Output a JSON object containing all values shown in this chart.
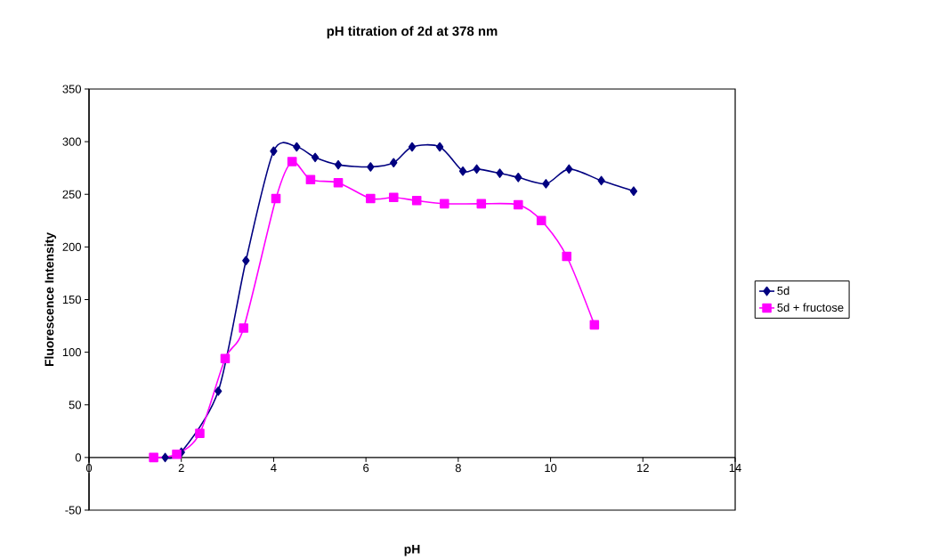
{
  "chart_data": {
    "type": "line",
    "title": "pH titration of 2d at 378 nm",
    "xlabel": "pH",
    "ylabel": "Fluorescence Intensity",
    "xlim": [
      0,
      14
    ],
    "xticks": [
      0,
      2,
      4,
      6,
      8,
      10,
      12,
      14
    ],
    "ylim": [
      -50,
      350
    ],
    "yticks": [
      -50,
      0,
      50,
      100,
      150,
      200,
      250,
      300,
      350
    ],
    "grid": false,
    "legend": "right",
    "series": [
      {
        "name": "5d",
        "color": "#000080",
        "marker": "diamond",
        "x": [
          1.65,
          2.0,
          2.4,
          2.8,
          3.4,
          4.0,
          4.5,
          4.9,
          5.4,
          6.1,
          6.6,
          7.0,
          7.6,
          8.1,
          8.4,
          8.9,
          9.3,
          9.9,
          10.4,
          11.1,
          11.8
        ],
        "values": [
          0,
          5,
          null,
          63,
          187,
          291,
          295,
          285,
          278,
          276,
          280,
          295,
          295,
          272,
          274,
          270,
          266,
          260,
          274,
          263,
          253
        ]
      },
      {
        "name": "5d + fructose",
        "color": "#ff00ff",
        "marker": "square",
        "x": [
          1.4,
          1.9,
          2.4,
          2.95,
          3.35,
          4.05,
          4.4,
          4.8,
          5.4,
          6.1,
          6.6,
          7.1,
          7.7,
          8.5,
          9.3,
          9.8,
          10.35,
          10.95
        ],
        "values": [
          0,
          3,
          23,
          94,
          123,
          246,
          281,
          264,
          261,
          246,
          247,
          244,
          241,
          241,
          240,
          225,
          191,
          126
        ]
      }
    ]
  }
}
